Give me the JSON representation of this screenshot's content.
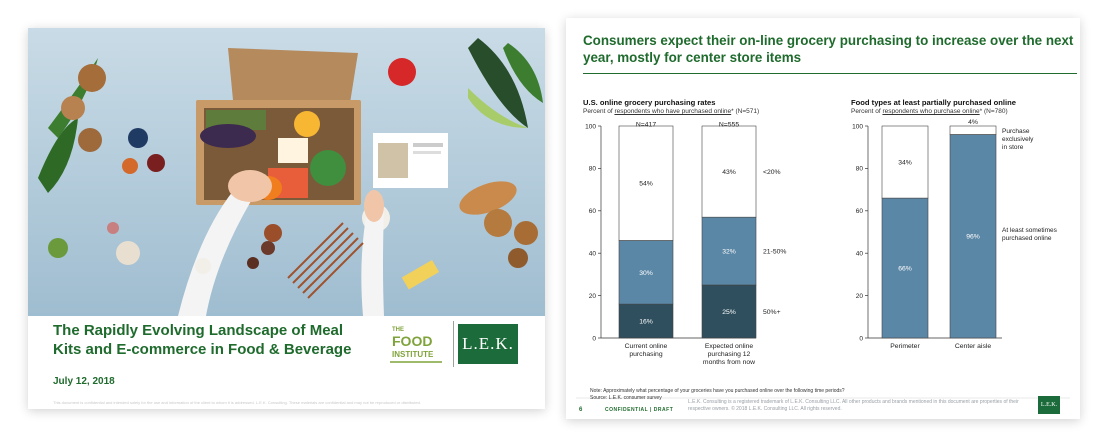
{
  "left_slide": {
    "title": "The Rapidly Evolving Landscape of Meal Kits and E-commerce in Food & Beverage",
    "date": "July 12, 2018",
    "footnote": "This document is confidential and intended solely for the use and information of the client to whom it is addressed. L.E.K. Consulting. These materials are confidential and may not be reproduced or distributed.",
    "logo_food_institute": {
      "line1": "THE",
      "line2": "FOOD",
      "line3": "INSTITUTE"
    },
    "logo_lek": "L.E.K.",
    "colors": {
      "title": "#1f6b2d",
      "logo_bg": "#1c6b3a",
      "food_institute": "#7fa33a"
    }
  },
  "right_slide": {
    "title": "Consumers expect their on-line grocery purchasing to increase over the next year, mostly for center store items",
    "page_number": "6",
    "confidential": "CONFIDENTIAL | DRAFT",
    "legal": "L.E.K. Consulting is a registered trademark of L.E.K. Consulting LLC. All other products and brands mentioned in this document are properties of their respective owners. © 2018 L.E.K. Consulting LLC. All rights reserved.",
    "note": "Note: Approximately what percentage of your groceries have you purchased online over the following time periods?",
    "source": "Source: L.E.K. consumer survey",
    "logo": "L.E.K."
  },
  "chart_data": [
    {
      "type": "bar",
      "stacked": true,
      "title": "U.S. online grocery purchasing rates",
      "subtitle_pre": "Percent of ",
      "subtitle_link": "respondents who have purchased online",
      "subtitle_post": "* (N=571)",
      "ylim": [
        0,
        100
      ],
      "yticks": [
        "0",
        "20",
        "40",
        "60",
        "80",
        "100"
      ],
      "categories": [
        "Current online purchasing",
        "Expected online purchasing 12 months from now"
      ],
      "category_label_lines": [
        [
          "Current online",
          "purchasing"
        ],
        [
          "Expected online",
          "purchasing 12",
          "months from now"
        ]
      ],
      "n_labels": [
        "N=417",
        "N=555"
      ],
      "series": [
        {
          "name": "50%+",
          "values": [
            16,
            25
          ],
          "labels": [
            "16%",
            "25%"
          ],
          "color": "#2f4f5e"
        },
        {
          "name": "21-50%",
          "values": [
            30,
            32
          ],
          "labels": [
            "30%",
            "32%"
          ],
          "color": "#5b87a6"
        },
        {
          "name": "<20%",
          "values": [
            54,
            43
          ],
          "labels": [
            "54%",
            "43%"
          ],
          "color": "#ffffff"
        }
      ]
    },
    {
      "type": "bar",
      "stacked": true,
      "title": "Food types at least partially purchased online",
      "subtitle_pre": "Percent of ",
      "subtitle_link": "respondents who purchase online",
      "subtitle_post": "* (N=780)",
      "ylim": [
        0,
        100
      ],
      "yticks": [
        "0",
        "20",
        "40",
        "60",
        "80",
        "100"
      ],
      "categories": [
        "Perimeter",
        "Center aisle"
      ],
      "series": [
        {
          "name": "At least sometimes purchased online",
          "name_lines": [
            "At least sometimes",
            "purchased online"
          ],
          "values": [
            66,
            96
          ],
          "labels": [
            "66%",
            "96%"
          ],
          "color": "#5b87a6"
        },
        {
          "name": "Purchase exclusively in store",
          "name_lines": [
            "Purchase",
            "exclusively",
            "in store"
          ],
          "values": [
            34,
            4
          ],
          "labels": [
            "34%",
            "4%"
          ],
          "color": "#ffffff"
        }
      ]
    }
  ]
}
